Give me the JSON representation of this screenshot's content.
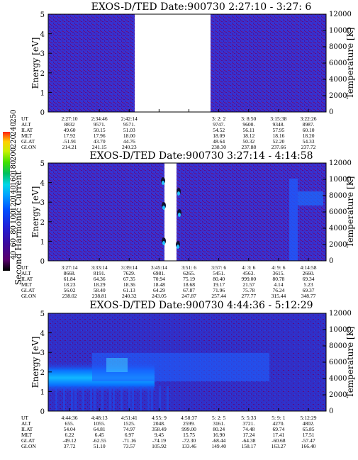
{
  "panels": [
    {
      "title": "EXOS-D/TED   Date:900730   2:27:10 - 3:27: 6",
      "ylabel": "Energy [eV]",
      "y2label": "Temperature [K]",
      "yticks": [
        "0",
        "1",
        "2",
        "3",
        "4",
        "5"
      ],
      "y2ticks": [
        "0",
        "2000",
        "4000",
        "6000",
        "8000",
        "10000",
        "12000"
      ],
      "table": {
        "labels": [
          "UT",
          "ALT",
          "ILAT",
          "MLT",
          "GLAT",
          "GLON"
        ],
        "columns": [
          [
            "2:27:10",
            "8832",
            "49.60",
            "17.92",
            "-51.91",
            "214.21"
          ],
          [
            "2:34:46",
            "9571.",
            "50.15",
            "17.96",
            "43.70",
            "241.15"
          ],
          [
            "2:42:14",
            "9571.",
            "51.03",
            "18.00",
            "44.76",
            "240.23"
          ],
          [
            "",
            "",
            "",
            "",
            "",
            ""
          ],
          [
            "",
            "",
            "",
            "",
            "",
            ""
          ],
          [
            "3: 2: 2",
            "9747.",
            "54.52",
            "18.09",
            "48.64",
            "238.30"
          ],
          [
            "3: 8:50",
            "9600.",
            "56.11",
            "18.12",
            "50.32",
            "237.88"
          ],
          [
            "3:15:38",
            "9348.",
            "57.95",
            "18.16",
            "52.20",
            "237.66"
          ],
          [
            "3:22:26",
            "8987.",
            "60.10",
            "18.20",
            "54.33",
            "237.72"
          ]
        ]
      }
    },
    {
      "title": "EXOS-D/TED   Date:900730   3:27:14 - 4:14:58",
      "ylabel": "Energy [eV]",
      "y2label": "Temperature [K]",
      "yticks": [
        "0",
        "1",
        "2",
        "3",
        "4",
        "5"
      ],
      "y2ticks": [
        "0",
        "2000",
        "4000",
        "6000",
        "8000",
        "10000",
        "12000"
      ],
      "table": {
        "labels": [
          "UT",
          "ALT",
          "ILAT",
          "MLT",
          "GLAT",
          "GLON"
        ],
        "columns": [
          [
            "3:27:14",
            "8668.",
            "61.84",
            "18.23",
            "56.02",
            "238.02"
          ],
          [
            "3:33:14",
            "8191.",
            "64.36",
            "18.29",
            "58.40",
            "238.81"
          ],
          [
            "3:39:14",
            "7629.",
            "67.35",
            "18.36",
            "61.13",
            "240.32"
          ],
          [
            "3:45:14",
            "6981.",
            "70.94",
            "18.48",
            "64.29",
            "243.05"
          ],
          [
            "3:51: 6",
            "6265.",
            "75.19",
            "18.68",
            "67.87",
            "247.87"
          ],
          [
            "3:57: 6",
            "5451.",
            "80.40",
            "19.17",
            "71.96",
            "257.44"
          ],
          [
            "4: 3: 6",
            "4563.",
            "999.00",
            "21.57",
            "75.78",
            "277.77"
          ],
          [
            "4: 9: 6",
            "3615.",
            "80.78",
            "4.14",
            "76.24",
            "315.44"
          ],
          [
            "4:14:58",
            "2660.",
            "69.34",
            "5.23",
            "69.37",
            "348.77"
          ]
        ]
      }
    },
    {
      "title": "EXOS-D/TED   Date:900730   4:44:36 - 5:12:29",
      "ylabel": "Energy [eV]",
      "y2label": "Temperature [K]",
      "yticks": [
        "0",
        "1",
        "2",
        "3",
        "4",
        "5"
      ],
      "y2ticks": [
        "0",
        "2000",
        "4000",
        "6000",
        "8000",
        "10000",
        "12000"
      ],
      "table": {
        "labels": [
          "UT",
          "ALT",
          "ILAT",
          "MLT",
          "GLAT",
          "GLON"
        ],
        "columns": [
          [
            "4:44:36",
            "655.",
            "54.04",
            "6.22",
            "-49.12",
            "37.72"
          ],
          [
            "4:48:13",
            "1055.",
            "64.81",
            "6.45",
            "-62.55",
            "51.10"
          ],
          [
            "4:51:41",
            "1525.",
            "74.97",
            "6.97",
            "-71.16",
            "73.57"
          ],
          [
            "4:55: 9",
            "2048.",
            "358.49",
            "9.45",
            "-74.19",
            "105.92"
          ],
          [
            "4:58:37",
            "2599.",
            "999.00",
            "15.75",
            "-72.30",
            "133.46"
          ],
          [
            "5: 2: 5",
            "3161.",
            "80.24",
            "16.90",
            "-68.44",
            "149.40"
          ],
          [
            "5: 5:33",
            "3721.",
            "74.48",
            "17.24",
            "-64.38",
            "158.17"
          ],
          [
            "5: 9: 1",
            "4270.",
            "69.74",
            "17.41",
            "-60.68",
            "163.27"
          ],
          [
            "5:12:29",
            "4802.",
            "65.85",
            "17.51",
            "-57.47",
            "166.40"
          ]
        ]
      }
    }
  ],
  "colorbar": {
    "label": "Second Harmonic Current",
    "ticks": [
      "40",
      "60",
      "80",
      "100",
      "120",
      "140",
      "160",
      "180",
      "200",
      "220",
      "240",
      "250"
    ],
    "colors": [
      "#000000",
      "#5a006e",
      "#3a0aa0",
      "#2020d8",
      "#0050ff",
      "#00a0ff",
      "#00d8e8",
      "#00c060",
      "#40e000",
      "#c8f000",
      "#ffd000",
      "#ff2010"
    ]
  },
  "chart_data": [
    {
      "type": "heatmap",
      "title": "EXOS-D/TED   Date:900730   2:27:10 - 3:27: 6",
      "ylabel": "Energy [eV]",
      "y2label": "Temperature [K]",
      "ylim": [
        0,
        5
      ],
      "y2lim": [
        0,
        12000
      ],
      "x_ticks": [
        "2:27:10",
        "2:34:46",
        "2:42:14",
        "3: 2: 2",
        "3: 8:50",
        "3:15:38",
        "3:22:26"
      ],
      "gaps": [
        [
          "2:45",
          "3:00"
        ]
      ]
    },
    {
      "type": "heatmap",
      "title": "EXOS-D/TED   Date:900730   3:27:14 - 4:14:58",
      "ylabel": "Energy [eV]",
      "y2label": "Temperature [K]",
      "ylim": [
        0,
        5
      ],
      "y2lim": [
        0,
        12000
      ],
      "x_ticks": [
        "3:27:14",
        "3:33:14",
        "3:39:14",
        "3:45:14",
        "3:51: 6",
        "3:57: 6",
        "4: 3: 6",
        "4: 9: 6",
        "4:14:58"
      ],
      "gaps": [
        [
          "3:45:30",
          "3:47:00"
        ]
      ]
    },
    {
      "type": "heatmap",
      "title": "EXOS-D/TED   Date:900730   4:44:36 - 5:12:29",
      "ylabel": "Energy [eV]",
      "y2label": "Temperature [K]",
      "ylim": [
        0,
        5
      ],
      "y2lim": [
        0,
        12000
      ],
      "x_ticks": [
        "4:44:36",
        "4:48:13",
        "4:51:41",
        "4:55: 9",
        "4:58:37",
        "5: 2: 5",
        "5: 5:33",
        "5: 9: 1",
        "5:12:29"
      ]
    }
  ]
}
